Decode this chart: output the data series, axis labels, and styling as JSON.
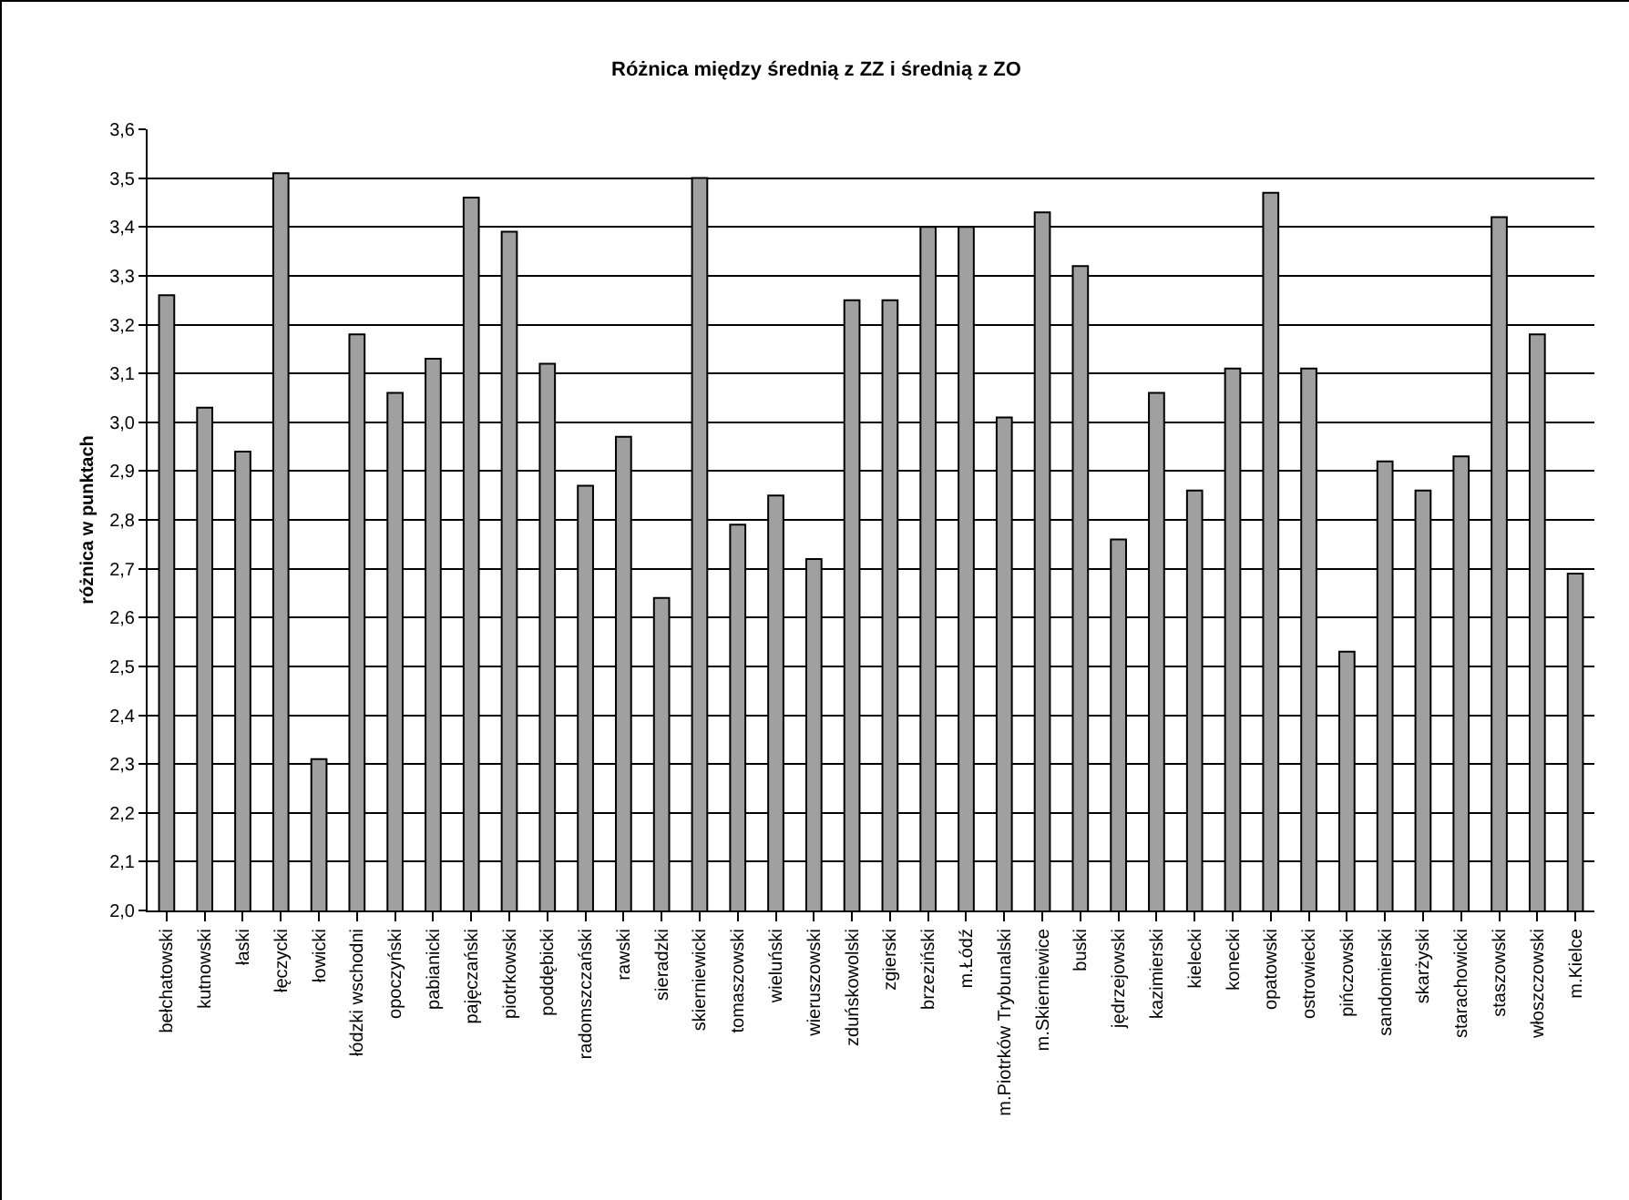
{
  "chart_data": {
    "type": "bar",
    "title": "Różnica między średnią z ZZ i średnią z ZO",
    "ylabel": "różnica w punktach",
    "categories": [
      "bełchatowski",
      "kutnowski",
      "łaski",
      "łęczycki",
      "łowicki",
      "łódzki wschodni",
      "opoczyński",
      "pabianicki",
      "pajęczański",
      "piotrkowski",
      "poddębicki",
      "radomszczański",
      "rawski",
      "sieradzki",
      "skierniewicki",
      "tomaszowski",
      "wieluński",
      "wieruszowski",
      "zduńskowolski",
      "zgierski",
      "brzeziński",
      "m.Łódź",
      "m.Piotrków Trybunalski",
      "m.Skierniewice",
      "buski",
      "jędrzejowski",
      "kazimierski",
      "kielecki",
      "konecki",
      "opatowski",
      "ostrowiecki",
      "pińczowski",
      "sandomierski",
      "skarżyski",
      "starachowicki",
      "staszowski",
      "włoszczowski",
      "m.Kielce"
    ],
    "values": [
      3.26,
      3.03,
      2.94,
      3.51,
      2.31,
      3.18,
      3.06,
      3.13,
      3.46,
      3.39,
      3.12,
      2.87,
      2.97,
      2.64,
      3.5,
      2.79,
      2.85,
      2.72,
      3.25,
      3.25,
      3.4,
      3.4,
      3.01,
      3.43,
      3.32,
      2.76,
      3.06,
      2.86,
      3.11,
      3.47,
      3.11,
      2.53,
      2.92,
      2.86,
      2.93,
      3.42,
      3.18,
      2.69
    ],
    "color": "#a0a0a0",
    "ylim": [
      2.0,
      3.6
    ],
    "yticks": [
      {
        "value": 2.0,
        "label": "2,0"
      },
      {
        "value": 2.1,
        "label": "2,1"
      },
      {
        "value": 2.2,
        "label": "2,2"
      },
      {
        "value": 2.3,
        "label": "2,3"
      },
      {
        "value": 2.4,
        "label": "2,4"
      },
      {
        "value": 2.5,
        "label": "2,5"
      },
      {
        "value": 2.6,
        "label": "2,6"
      },
      {
        "value": 2.7,
        "label": "2,7"
      },
      {
        "value": 2.8,
        "label": "2,8"
      },
      {
        "value": 2.9,
        "label": "2,9"
      },
      {
        "value": 3.0,
        "label": "3,0"
      },
      {
        "value": 3.1,
        "label": "3,1"
      },
      {
        "value": 3.2,
        "label": "3,2"
      },
      {
        "value": 3.3,
        "label": "3,3"
      },
      {
        "value": 3.4,
        "label": "3,4"
      },
      {
        "value": 3.5,
        "label": "3,5"
      },
      {
        "value": 3.6,
        "label": "3,6"
      }
    ],
    "grid": "y"
  }
}
